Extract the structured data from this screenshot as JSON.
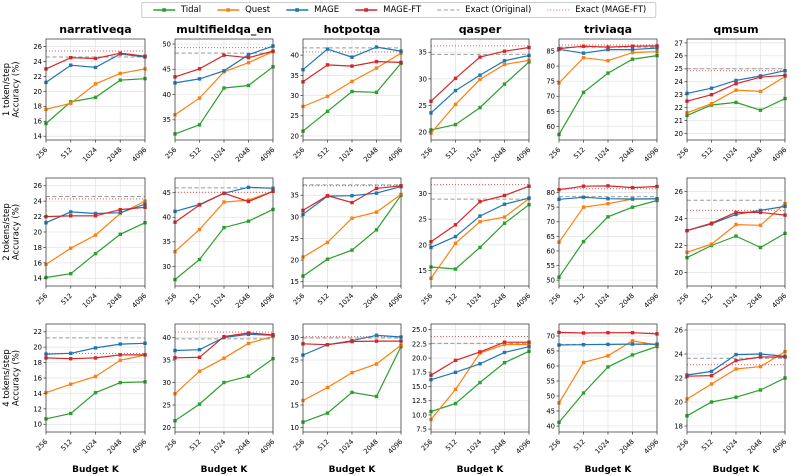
{
  "legend": {
    "items": [
      {
        "label": "Tidal",
        "color": "#2ca02c",
        "style": "solid"
      },
      {
        "label": "Quest",
        "color": "#ff7f0e",
        "style": "solid"
      },
      {
        "label": "MAGE",
        "color": "#1f77b4",
        "style": "solid"
      },
      {
        "label": "MAGE-FT",
        "color": "#d62728",
        "style": "solid"
      },
      {
        "label": "Exact (Original)",
        "color": "#999999",
        "style": "dashed"
      },
      {
        "label": "Exact (MAGE-FT)",
        "color": "#e05a5a",
        "style": "dotted"
      }
    ]
  },
  "chart_data": {
    "type": "line",
    "grid": true,
    "xscale": "log2",
    "x": [
      256,
      512,
      1024,
      2048,
      4096
    ],
    "x_tick_labels": [
      "256",
      "512",
      "1024",
      "2048",
      "4096"
    ],
    "xlabel": "Budget K",
    "row_ylabels": [
      [
        "1 token/step",
        "Accuracy (%)"
      ],
      [
        "2 tokens/step",
        "Accuracy (%)"
      ],
      [
        "4 tokens/step",
        "Accuracy (%)"
      ]
    ],
    "row_keys": [
      "1tok",
      "2tok",
      "4tok"
    ],
    "series_names": [
      "Tidal",
      "Quest",
      "MAGE",
      "MAGE-FT"
    ],
    "series_colors": {
      "tidal": "#2ca02c",
      "quest": "#ff7f0e",
      "mage": "#1f77b4",
      "mage_ft": "#d62728",
      "exact_original": "#999999",
      "exact_mage_ft": "#e05a5a"
    },
    "subplots": [
      {
        "dataset": "narrativeqa",
        "ylim": [
          13.5,
          27
        ],
        "yticks": [
          14,
          16,
          18,
          20,
          22,
          24,
          26
        ],
        "tidal": [
          15.7,
          18.6,
          19.2,
          21.5,
          21.7
        ],
        "quest": [
          17.6,
          18.4,
          21.0,
          22.4,
          23.0
        ],
        "mage": [
          21.2,
          23.5,
          23.2,
          25.0,
          24.6
        ],
        "mage_ft": [
          23.0,
          24.5,
          24.4,
          25.1,
          24.7
        ],
        "exact_original": 24.6,
        "exact_mage_ft": 25.4
      },
      {
        "dataset": "multifieldqa_en",
        "ylim": [
          31,
          51
        ],
        "yticks": [
          35,
          40,
          45,
          50
        ],
        "tidal": [
          32.2,
          34.0,
          41.3,
          41.8,
          45.5
        ],
        "quest": [
          36.0,
          39.3,
          44.5,
          46.3,
          48.5
        ],
        "mage": [
          42.3,
          43.1,
          44.7,
          47.9,
          49.6
        ],
        "mage_ft": [
          43.5,
          45.1,
          47.8,
          47.3,
          48.6
        ],
        "exact_original": 48.2,
        "exact_mage_ft": 49.3
      },
      {
        "dataset": "hotpotqa",
        "ylim": [
          19,
          44
        ],
        "yticks": [
          20,
          25,
          30,
          35,
          40
        ],
        "tidal": [
          21.2,
          26.1,
          31.0,
          30.8,
          38.0
        ],
        "quest": [
          27.3,
          29.8,
          33.5,
          36.8,
          40.5
        ],
        "mage": [
          36.4,
          41.5,
          39.5,
          42.0,
          41.0
        ],
        "mage_ft": [
          33.4,
          37.6,
          37.3,
          38.4,
          38.2
        ],
        "exact_original": 41.8,
        "exact_mage_ft": 40.8
      },
      {
        "dataset": "qasper",
        "ylim": [
          18.5,
          37.5
        ],
        "yticks": [
          20,
          25,
          30,
          35
        ],
        "tidal": [
          20.4,
          21.4,
          24.6,
          29.0,
          33.2
        ],
        "quest": [
          19.8,
          25.2,
          29.9,
          32.7,
          33.5
        ],
        "mage": [
          23.6,
          27.8,
          30.7,
          33.4,
          34.4
        ],
        "mage_ft": [
          25.8,
          30.1,
          34.1,
          35.2,
          35.9
        ],
        "exact_original": 34.6,
        "exact_mage_ft": 36.2
      },
      {
        "dataset": "triviaqa",
        "ylim": [
          55.5,
          89
        ],
        "yticks": [
          60,
          65,
          70,
          75,
          80,
          85
        ],
        "tidal": [
          57.3,
          71.3,
          77.7,
          82.3,
          83.5
        ],
        "quest": [
          74.4,
          82.8,
          81.8,
          84.5,
          84.8
        ],
        "mage": [
          85.6,
          84.3,
          85.5,
          85.5,
          86.0
        ],
        "mage_ft": [
          85.8,
          86.6,
          86.3,
          86.6,
          86.7
        ],
        "exact_original": 86.3,
        "exact_mage_ft": 87.0
      },
      {
        "dataset": "qmsum",
        "ylim": [
          19.5,
          27.3
        ],
        "yticks": [
          20,
          21,
          22,
          23,
          24,
          25,
          26,
          27
        ],
        "tidal": [
          21.4,
          22.2,
          22.4,
          21.8,
          22.7
        ],
        "quest": [
          21.6,
          22.3,
          23.35,
          23.25,
          24.4
        ],
        "mage": [
          23.1,
          23.5,
          24.1,
          24.45,
          24.85
        ],
        "mage_ft": [
          22.5,
          23.0,
          23.85,
          24.35,
          24.5
        ],
        "exact_original": 25.0,
        "exact_mage_ft": 24.85
      },
      {
        "dataset": "narrativeqa",
        "ylim": [
          13,
          27
        ],
        "yticks": [
          14,
          16,
          18,
          20,
          22,
          24,
          26
        ],
        "tidal": [
          14.1,
          14.6,
          17.2,
          19.7,
          21.2
        ],
        "quest": [
          15.8,
          17.9,
          19.6,
          22.4,
          24.0
        ],
        "mage": [
          21.2,
          22.6,
          22.4,
          22.5,
          23.6
        ],
        "mage_ft": [
          22.0,
          22.1,
          22.1,
          22.9,
          23.2
        ],
        "exact_original": 24.6,
        "exact_mage_ft": 24.3
      },
      {
        "dataset": "multifieldqa_en",
        "ylim": [
          26,
          48
        ],
        "yticks": [
          30,
          35,
          40,
          45
        ],
        "tidal": [
          27.3,
          31.4,
          37.9,
          39.2,
          41.6
        ],
        "quest": [
          33.0,
          37.5,
          43.1,
          43.5,
          45.3
        ],
        "mage": [
          41.2,
          42.6,
          44.9,
          46.1,
          45.9
        ],
        "mage_ft": [
          39.0,
          42.5,
          44.9,
          43.2,
          45.3
        ],
        "exact_original": 46.0,
        "exact_mage_ft": 45.1
      },
      {
        "dataset": "hotpotqa",
        "ylim": [
          14,
          39
        ],
        "yticks": [
          15,
          20,
          25,
          30,
          35
        ],
        "tidal": [
          16.3,
          20.2,
          22.3,
          27.0,
          35.0
        ],
        "quest": [
          20.7,
          24.1,
          29.7,
          31.1,
          35.2
        ],
        "mage": [
          30.6,
          34.8,
          34.9,
          35.5,
          37.0
        ],
        "mage_ft": [
          31.5,
          34.9,
          33.3,
          36.6,
          37.2
        ],
        "exact_original": 37.4,
        "exact_mage_ft": 37.2
      },
      {
        "dataset": "qasper",
        "ylim": [
          12,
          33
        ],
        "yticks": [
          15,
          20,
          25,
          30
        ],
        "tidal": [
          15.7,
          15.3,
          19.5,
          24.2,
          27.8
        ],
        "quest": [
          13.5,
          20.3,
          24.5,
          25.4,
          29.0
        ],
        "mage": [
          19.5,
          21.6,
          25.6,
          27.9,
          29.1
        ],
        "mage_ft": [
          20.6,
          23.9,
          28.4,
          29.6,
          31.4
        ],
        "exact_original": 28.9,
        "exact_mage_ft": 31.7
      },
      {
        "dataset": "triviaqa",
        "ylim": [
          48,
          85
        ],
        "yticks": [
          50,
          55,
          60,
          65,
          70,
          75,
          80
        ],
        "tidal": [
          51.0,
          63.2,
          71.7,
          75.0,
          77.3
        ],
        "quest": [
          63.0,
          75.0,
          76.2,
          77.8,
          77.8
        ],
        "mage": [
          77.7,
          78.4,
          77.9,
          77.8,
          77.9
        ],
        "mage_ft": [
          81.0,
          82.2,
          82.3,
          81.7,
          82.1
        ],
        "exact_original": 78.6,
        "exact_mage_ft": 81.3
      },
      {
        "dataset": "qmsum",
        "ylim": [
          19,
          27
        ],
        "yticks": [
          20,
          22,
          24,
          26
        ],
        "tidal": [
          21.1,
          22.0,
          22.7,
          21.85,
          22.9
        ],
        "quest": [
          21.5,
          22.1,
          23.55,
          23.5,
          25.1
        ],
        "mage": [
          23.1,
          23.6,
          24.3,
          24.6,
          24.9
        ],
        "mage_ft": [
          23.1,
          23.65,
          24.45,
          24.45,
          24.25
        ],
        "exact_original": 25.35,
        "exact_mage_ft": 24.6
      },
      {
        "dataset": "narrativeqa",
        "ylim": [
          9,
          23
        ],
        "yticks": [
          10,
          12,
          14,
          16,
          18,
          20,
          22
        ],
        "tidal": [
          10.7,
          11.4,
          14.1,
          15.4,
          15.5
        ],
        "quest": [
          14.1,
          15.2,
          16.2,
          18.3,
          19.0
        ],
        "mage": [
          19.1,
          19.2,
          19.9,
          20.4,
          20.5
        ],
        "mage_ft": [
          18.6,
          18.5,
          18.6,
          19.0,
          19.0
        ],
        "exact_original": 21.2,
        "exact_mage_ft": 19.2
      },
      {
        "dataset": "multifieldqa_en",
        "ylim": [
          19,
          43
        ],
        "yticks": [
          20,
          25,
          30,
          35,
          40
        ],
        "tidal": [
          21.5,
          25.2,
          30.0,
          31.4,
          35.3
        ],
        "quest": [
          27.5,
          32.5,
          35.4,
          38.7,
          40.2
        ],
        "mage": [
          37.1,
          37.3,
          40.0,
          40.7,
          40.5
        ],
        "mage_ft": [
          35.5,
          35.6,
          40.2,
          41.0,
          40.6
        ],
        "exact_original": 39.7,
        "exact_mage_ft": 41.2
      },
      {
        "dataset": "hotpotqa",
        "ylim": [
          9,
          33
        ],
        "yticks": [
          10,
          15,
          20,
          25,
          30
        ],
        "tidal": [
          11.2,
          13.2,
          17.8,
          16.9,
          28.0
        ],
        "quest": [
          16.0,
          18.9,
          22.2,
          24.1,
          28.3
        ],
        "mage": [
          26.1,
          28.4,
          29.3,
          30.5,
          30.1
        ],
        "mage_ft": [
          28.6,
          28.4,
          29.1,
          29.2,
          29.2
        ],
        "exact_original": 29.9,
        "exact_mage_ft": 30.2
      },
      {
        "dataset": "qasper",
        "ylim": [
          7,
          26
        ],
        "yticks": [
          7.5,
          10,
          12.5,
          15,
          17.5,
          20,
          22.5,
          25
        ],
        "ytick_decimals": 1,
        "tidal": [
          10.6,
          12.0,
          15.7,
          19.2,
          21.2
        ],
        "quest": [
          9.2,
          14.5,
          20.9,
          22.4,
          22.4
        ],
        "mage": [
          16.2,
          17.5,
          19.0,
          21.0,
          22.0
        ],
        "mage_ft": [
          17.0,
          19.6,
          21.1,
          22.8,
          22.8
        ],
        "exact_original": 22.6,
        "exact_mage_ft": 23.8
      },
      {
        "dataset": "triviaqa",
        "ylim": [
          38,
          74
        ],
        "yticks": [
          40,
          45,
          50,
          55,
          60,
          65,
          70
        ],
        "tidal": [
          41.2,
          51.0,
          59.7,
          63.7,
          66.5
        ],
        "quest": [
          47.7,
          61.2,
          63.4,
          68.4,
          67.0
        ],
        "mage": [
          67.0,
          67.1,
          67.2,
          67.3,
          67.3
        ],
        "mage_ft": [
          71.2,
          71.0,
          71.1,
          71.1,
          70.7
        ],
        "exact_original": 67.2,
        "exact_mage_ft": 71.0
      },
      {
        "dataset": "qmsum",
        "ylim": [
          17.5,
          26.5
        ],
        "yticks": [
          18,
          20,
          22,
          24,
          26
        ],
        "tidal": [
          18.85,
          20.0,
          20.4,
          21.0,
          22.0
        ],
        "quest": [
          20.25,
          21.5,
          22.75,
          22.95,
          24.2
        ],
        "mage": [
          22.25,
          22.55,
          23.95,
          24.0,
          23.8
        ],
        "mage_ft": [
          22.15,
          22.2,
          23.45,
          23.75,
          23.75
        ],
        "exact_original": 23.65,
        "exact_mage_ft": 23.1
      }
    ]
  }
}
